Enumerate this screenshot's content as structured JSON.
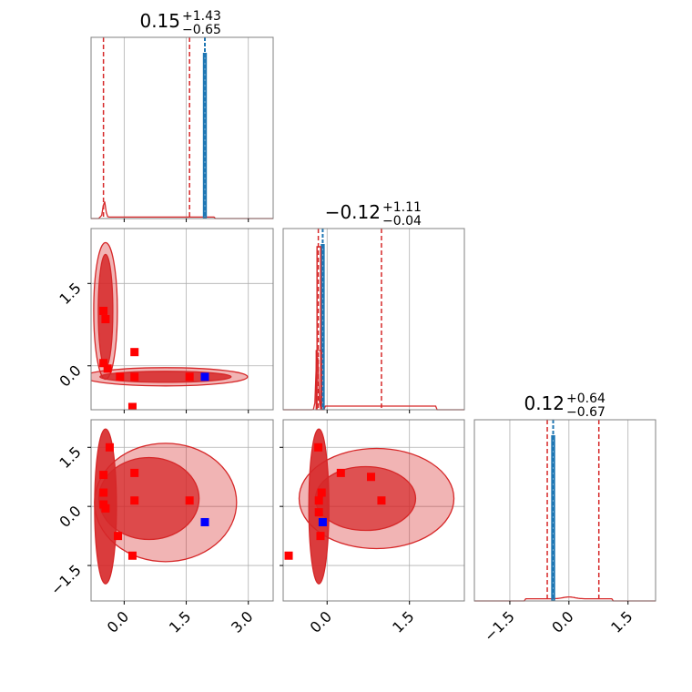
{
  "chart_data": {
    "type": "corner",
    "parameters": [
      {
        "title": {
          "median": "0.15",
          "plus": "+1.43",
          "minus": "−0.65"
        },
        "range": [
          -0.8,
          3.6
        ],
        "ticks": [
          0.0,
          1.5,
          3.0
        ],
        "tick_labels": [
          "0.0",
          "1.5",
          "3.0"
        ],
        "quantiles": [
          -0.5,
          1.58
        ],
        "truth": 1.95
      },
      {
        "title": {
          "median": "−0.12",
          "plus": "+1.11",
          "minus": "−0.04"
        },
        "range": [
          -0.8,
          2.5
        ],
        "ticks": [
          0.0,
          1.5
        ],
        "tick_labels": [
          "0.0",
          "1.5"
        ],
        "quantiles": [
          -0.16,
          0.99
        ],
        "truth": -0.08
      },
      {
        "title": {
          "median": "0.12",
          "plus": "+0.64",
          "minus": "−0.67"
        },
        "range": [
          -2.4,
          2.2
        ],
        "ticks": [
          -1.5,
          0.0,
          1.5
        ],
        "tick_labels": [
          "−1.5",
          "0.0",
          "1.5"
        ],
        "quantiles": [
          -0.55,
          0.76
        ],
        "truth": -0.4
      }
    ],
    "colors": {
      "posterior": "#d62728",
      "truth": "#1f77b4",
      "red_points": "#ff0000",
      "blue_point": "#0000ff",
      "grid": "#b0b0b0",
      "axes": "#808080"
    },
    "red_points": {
      "p1_p0": [
        [
          -0.5,
          1.0
        ],
        [
          -0.45,
          0.85
        ],
        [
          -0.5,
          0.05
        ],
        [
          -0.4,
          -0.05
        ],
        [
          -0.1,
          -0.2
        ],
        [
          0.25,
          0.25
        ],
        [
          0.25,
          -0.2
        ],
        [
          0.2,
          -0.75
        ],
        [
          1.58,
          -0.2
        ]
      ],
      "p2_p0": [
        [
          -0.5,
          0.8
        ],
        [
          -0.5,
          0.35
        ],
        [
          -0.5,
          0.05
        ],
        [
          -0.45,
          -0.05
        ],
        [
          -0.35,
          1.5
        ],
        [
          -0.15,
          -0.75
        ],
        [
          0.25,
          0.85
        ],
        [
          0.25,
          0.15
        ],
        [
          0.2,
          -1.25
        ],
        [
          1.58,
          0.15
        ]
      ],
      "p2_p1": [
        [
          -0.16,
          1.5
        ],
        [
          -0.1,
          0.35
        ],
        [
          -0.15,
          0.15
        ],
        [
          -0.15,
          -0.15
        ],
        [
          -0.12,
          -0.75
        ],
        [
          -0.7,
          -1.25
        ],
        [
          0.25,
          0.85
        ],
        [
          0.8,
          0.75
        ],
        [
          0.99,
          0.15
        ]
      ]
    },
    "blue_points": {
      "p1_p0": [
        1.95,
        -0.2
      ],
      "p2_p0": [
        1.95,
        -0.4
      ],
      "p2_p1": [
        -0.08,
        -0.4
      ]
    }
  }
}
